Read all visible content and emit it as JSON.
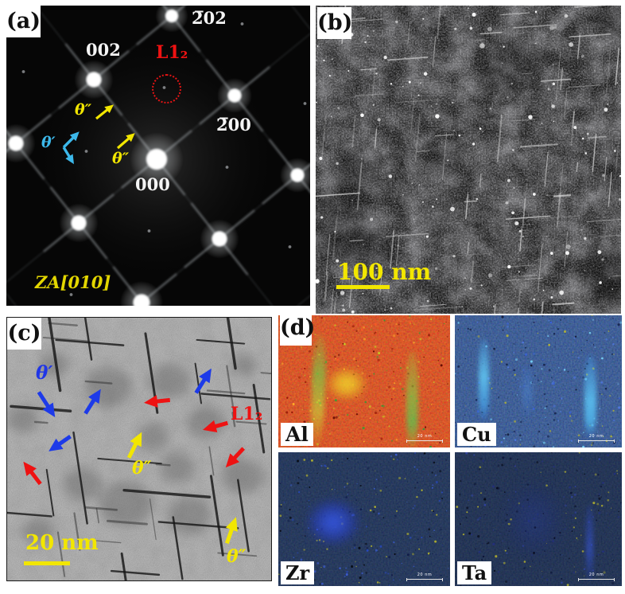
{
  "colors": {
    "yellow": "#f2e600",
    "red": "#ee1212",
    "cyan_theta_prime": "#3cb8ea",
    "blue_theta_prime": "#1d3ae8",
    "white": "#f4f4f4",
    "al_map_base": "#c01c05",
    "cu_map_base": "#0a1124"
  },
  "panels": {
    "a": {
      "tag": "(a)",
      "labels": {
        "i202": "2̅02",
        "i002": "002",
        "i200": "2̅00",
        "i000": "000",
        "l12": "L1₂",
        "theta2_upper": "θ″",
        "theta2_lower": "θ″",
        "theta1": "θ′",
        "zone_axis": "ZA[010]"
      }
    },
    "b": {
      "tag": "(b)",
      "scale_bar": "100 nm"
    },
    "c": {
      "tag": "(c)",
      "labels": {
        "theta1": "θ′",
        "l12": "L1₂",
        "theta2_mid": "θ″",
        "theta2_bottom": "θ″"
      },
      "scale_bar": "20 nm"
    },
    "d": {
      "tag": "(d)",
      "maps": [
        {
          "element": "Al",
          "scale_bar": "20 nm"
        },
        {
          "element": "Cu",
          "scale_bar": "20 nm"
        },
        {
          "element": "Zr",
          "scale_bar": "20 nm"
        },
        {
          "element": "Ta",
          "scale_bar": "20 nm"
        }
      ]
    }
  }
}
